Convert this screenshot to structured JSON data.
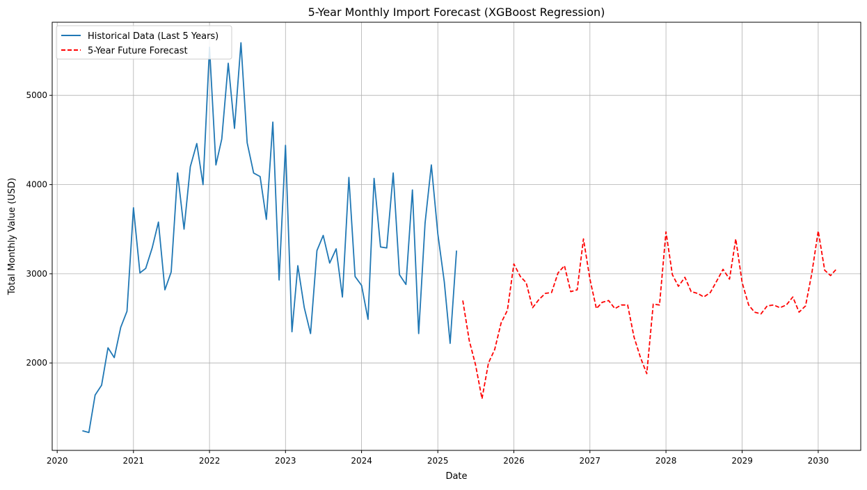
{
  "chart_data": {
    "type": "line",
    "title": "5-Year Monthly Import Forecast (XGBoost Regression)",
    "xlabel": "Date",
    "ylabel": "Total Monthly Value (USD)",
    "xlim": [
      "2019-12-08",
      "2030-07-24"
    ],
    "ylim": [
      1020,
      5820
    ],
    "x_ticks": [
      {
        "label": "2020",
        "date": "2020-01-01"
      },
      {
        "label": "2021",
        "date": "2021-01-01"
      },
      {
        "label": "2022",
        "date": "2022-01-01"
      },
      {
        "label": "2023",
        "date": "2023-01-01"
      },
      {
        "label": "2024",
        "date": "2024-01-01"
      },
      {
        "label": "2025",
        "date": "2025-01-01"
      },
      {
        "label": "2026",
        "date": "2026-01-01"
      },
      {
        "label": "2027",
        "date": "2027-01-01"
      },
      {
        "label": "2028",
        "date": "2028-01-01"
      },
      {
        "label": "2029",
        "date": "2029-01-01"
      },
      {
        "label": "2030",
        "date": "2030-01-01"
      }
    ],
    "y_ticks": [
      {
        "label": "2000",
        "value": 2000
      },
      {
        "label": "3000",
        "value": 3000
      },
      {
        "label": "4000",
        "value": 4000
      },
      {
        "label": "5000",
        "value": 5000
      }
    ],
    "grid": true,
    "legend_position": "top-left",
    "series": [
      {
        "name": "Historical Data (Last 5 Years)",
        "color": "#1f77b4",
        "style": "solid",
        "x": [
          "2020-05-01",
          "2020-06-01",
          "2020-07-01",
          "2020-08-01",
          "2020-09-01",
          "2020-10-01",
          "2020-11-01",
          "2020-12-01",
          "2021-01-01",
          "2021-02-01",
          "2021-03-01",
          "2021-04-01",
          "2021-05-01",
          "2021-06-01",
          "2021-07-01",
          "2021-08-01",
          "2021-09-01",
          "2021-10-01",
          "2021-11-01",
          "2021-12-01",
          "2022-01-01",
          "2022-02-01",
          "2022-03-01",
          "2022-04-01",
          "2022-05-01",
          "2022-06-01",
          "2022-07-01",
          "2022-08-01",
          "2022-09-01",
          "2022-10-01",
          "2022-11-01",
          "2022-12-01",
          "2023-01-01",
          "2023-02-01",
          "2023-03-01",
          "2023-04-01",
          "2023-05-01",
          "2023-06-01",
          "2023-07-01",
          "2023-08-01",
          "2023-09-01",
          "2023-10-01",
          "2023-11-01",
          "2023-12-01",
          "2024-01-01",
          "2024-02-01",
          "2024-03-01",
          "2024-04-01",
          "2024-05-01",
          "2024-06-01",
          "2024-07-01",
          "2024-08-01",
          "2024-09-01",
          "2024-10-01",
          "2024-11-01",
          "2024-12-01",
          "2025-01-01",
          "2025-02-01",
          "2025-03-01",
          "2025-04-01"
        ],
        "values": [
          1240,
          1220,
          1640,
          1750,
          2170,
          2060,
          2400,
          2580,
          3740,
          3010,
          3060,
          3290,
          3580,
          2820,
          3020,
          4130,
          3500,
          4200,
          4460,
          4000,
          5540,
          4220,
          4510,
          5360,
          4630,
          5590,
          4470,
          4130,
          4090,
          3610,
          4700,
          2930,
          4440,
          2350,
          3090,
          2620,
          2330,
          3260,
          3430,
          3120,
          3280,
          2740,
          4080,
          2970,
          2870,
          2490,
          4070,
          3300,
          3290,
          4130,
          2990,
          2880,
          3940,
          2330,
          3570,
          4220,
          3450,
          2910,
          2220,
          3260
        ]
      },
      {
        "name": "5-Year Future Forecast",
        "color": "#ff0000",
        "style": "dashed",
        "x": [
          "2025-05-01",
          "2025-06-01",
          "2025-07-01",
          "2025-08-01",
          "2025-09-01",
          "2025-10-01",
          "2025-11-01",
          "2025-12-01",
          "2026-01-01",
          "2026-02-01",
          "2026-03-01",
          "2026-04-01",
          "2026-05-01",
          "2026-06-01",
          "2026-07-01",
          "2026-08-01",
          "2026-09-01",
          "2026-10-01",
          "2026-11-01",
          "2026-12-01",
          "2027-01-01",
          "2027-02-01",
          "2027-03-01",
          "2027-04-01",
          "2027-05-01",
          "2027-06-01",
          "2027-07-01",
          "2027-08-01",
          "2027-09-01",
          "2027-10-01",
          "2027-11-01",
          "2027-12-01",
          "2028-01-01",
          "2028-02-01",
          "2028-03-01",
          "2028-04-01",
          "2028-05-01",
          "2028-06-01",
          "2028-07-01",
          "2028-08-01",
          "2028-09-01",
          "2028-10-01",
          "2028-11-01",
          "2028-12-01",
          "2029-01-01",
          "2029-02-01",
          "2029-03-01",
          "2029-04-01",
          "2029-05-01",
          "2029-06-01",
          "2029-07-01",
          "2029-08-01",
          "2029-09-01",
          "2029-10-01",
          "2029-11-01",
          "2029-12-01",
          "2030-01-01",
          "2030-02-01",
          "2030-03-01",
          "2030-04-01"
        ],
        "values": [
          2700,
          2250,
          1980,
          1600,
          2000,
          2150,
          2450,
          2590,
          3110,
          2970,
          2900,
          2620,
          2710,
          2780,
          2790,
          3010,
          3090,
          2800,
          2820,
          3390,
          2940,
          2610,
          2680,
          2700,
          2610,
          2650,
          2650,
          2290,
          2060,
          1880,
          2660,
          2650,
          3470,
          2990,
          2860,
          2960,
          2800,
          2780,
          2740,
          2790,
          2920,
          3050,
          2940,
          3390,
          2900,
          2650,
          2570,
          2550,
          2640,
          2650,
          2620,
          2650,
          2740,
          2570,
          2640,
          3000,
          3480,
          3040,
          2980,
          3060
        ]
      }
    ]
  }
}
